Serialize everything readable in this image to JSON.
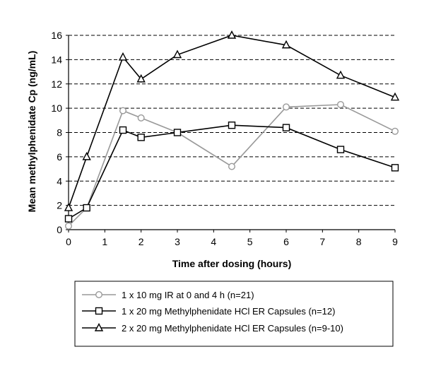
{
  "chart_data": {
    "type": "line",
    "xlabel": "Time after dosing (hours)",
    "ylabel": "Mean methylphenidate Cp (ng/mL)",
    "xlim": [
      0,
      9
    ],
    "ylim": [
      0,
      16
    ],
    "x_ticks": [
      "0",
      "1",
      "2",
      "3",
      "4",
      "5",
      "6",
      "7",
      "8",
      "9"
    ],
    "y_ticks": [
      "0",
      "2",
      "4",
      "6",
      "8",
      "10",
      "12",
      "14",
      "16"
    ],
    "grid": "horizontal dashed",
    "legend_position": "bottom",
    "series": [
      {
        "name": "1 x 10 mg IR at 0 and 4 h (n=21)",
        "color": "#999999",
        "marker": "circle",
        "x": [
          0,
          0.5,
          1.5,
          2,
          3,
          4.5,
          6,
          7.5,
          9
        ],
        "y": [
          0.3,
          1.8,
          9.8,
          9.2,
          8.0,
          5.2,
          10.1,
          10.3,
          8.1
        ]
      },
      {
        "name": "1 x 20 mg Methylphenidate HCl ER Capsules (n=12)",
        "color": "#000000",
        "marker": "square",
        "x": [
          0,
          0.5,
          1.5,
          2,
          3,
          4.5,
          6,
          7.5,
          9
        ],
        "y": [
          0.9,
          1.8,
          8.2,
          7.6,
          8.0,
          8.6,
          8.4,
          6.6,
          5.1
        ]
      },
      {
        "name": "2 x 20 mg Methylphenidate HCl ER Capsules (n=9-10)",
        "color": "#000000",
        "marker": "triangle",
        "x": [
          0,
          0.5,
          1.5,
          2,
          3,
          4.5,
          6,
          7.5,
          9
        ],
        "y": [
          1.8,
          6.0,
          14.2,
          12.4,
          14.4,
          16.0,
          15.2,
          12.7,
          10.9
        ]
      }
    ]
  }
}
